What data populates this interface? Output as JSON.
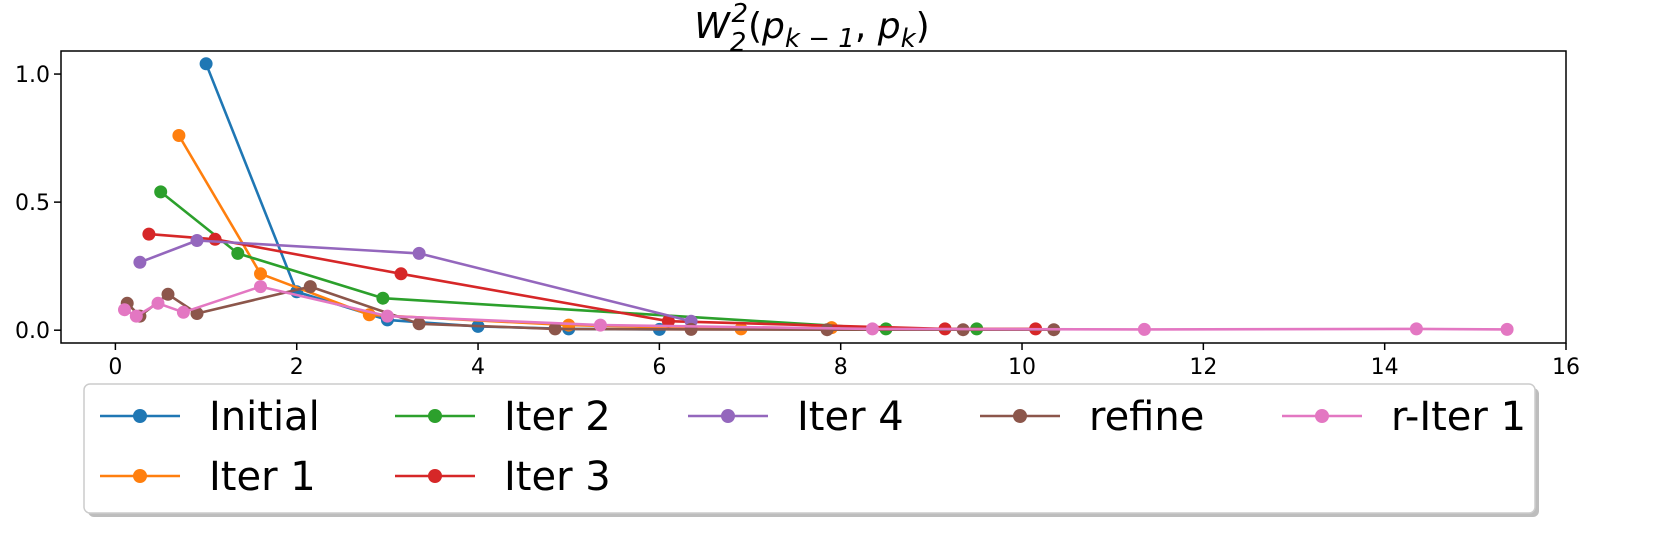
{
  "chart_data": {
    "type": "line",
    "title": "W₂²(p_{k−1}, p_k)",
    "title_parts": {
      "w": "W",
      "sub2": "2",
      "sup2": "2",
      "open": "(",
      "p1": "p",
      "sub_k1": "k − 1",
      "comma": ", ",
      "p2": "p",
      "sub_k": "k",
      "close": ")"
    },
    "xlabel": "",
    "ylabel": "",
    "xlim": [
      -0.6,
      16.0
    ],
    "ylim": [
      -0.05,
      1.09
    ],
    "x_ticks": [
      0,
      2,
      4,
      6,
      8,
      10,
      12,
      14,
      16
    ],
    "y_ticks": [
      0.0,
      0.5,
      1.0
    ],
    "y_tick_labels": [
      "0.0",
      "0.5",
      "1.0"
    ],
    "grid": false,
    "legend_position": "below",
    "series": [
      {
        "name": "Initial",
        "color": "#1f77b4",
        "x": [
          1.0,
          2.0,
          3.0,
          4.0,
          5.0,
          6.0
        ],
        "y": [
          1.04,
          0.15,
          0.04,
          0.015,
          0.005,
          0.003
        ]
      },
      {
        "name": "Iter 1",
        "color": "#ff7f0e",
        "x": [
          0.7,
          1.6,
          2.8,
          5.0,
          6.9,
          7.9
        ],
        "y": [
          0.76,
          0.22,
          0.06,
          0.02,
          0.005,
          0.01
        ]
      },
      {
        "name": "Iter 2",
        "color": "#2ca02c",
        "x": [
          0.5,
          1.35,
          2.95,
          8.5,
          9.5
        ],
        "y": [
          0.54,
          0.3,
          0.125,
          0.005,
          0.005
        ]
      },
      {
        "name": "Iter 3",
        "color": "#d62728",
        "x": [
          0.37,
          1.1,
          3.15,
          6.1,
          9.15,
          10.15
        ],
        "y": [
          0.375,
          0.355,
          0.22,
          0.035,
          0.005,
          0.005
        ]
      },
      {
        "name": "Iter 4",
        "color": "#9467bd",
        "x": [
          0.27,
          0.9,
          3.35,
          6.35
        ],
        "y": [
          0.265,
          0.35,
          0.3,
          0.035
        ]
      },
      {
        "name": "refine",
        "color": "#8c564b",
        "x": [
          0.13,
          0.27,
          0.58,
          0.9,
          2.15,
          3.35,
          4.85,
          6.35,
          7.85,
          9.35,
          10.35
        ],
        "y": [
          0.105,
          0.055,
          0.14,
          0.065,
          0.17,
          0.025,
          0.005,
          0.003,
          0.002,
          0.002,
          0.002
        ]
      },
      {
        "name": "r-Iter 1",
        "color": "#e377c2",
        "x": [
          0.1,
          0.23,
          0.47,
          0.75,
          1.6,
          3.0,
          5.35,
          8.35,
          11.35,
          14.35,
          15.35
        ],
        "y": [
          0.08,
          0.055,
          0.105,
          0.07,
          0.17,
          0.055,
          0.02,
          0.005,
          0.003,
          0.005,
          0.003
        ]
      }
    ]
  },
  "legend": {
    "items": [
      "Initial",
      "Iter 2",
      "Iter 4",
      "refine",
      "r-Iter 1",
      "Iter 1",
      "Iter 3"
    ]
  }
}
